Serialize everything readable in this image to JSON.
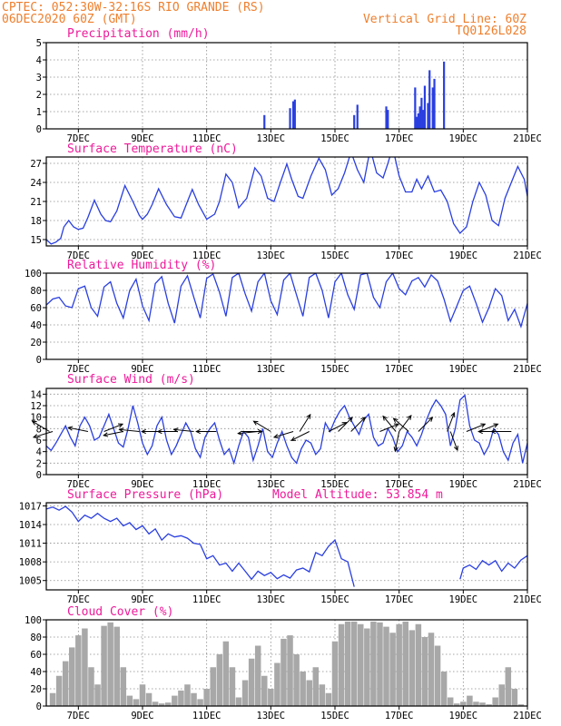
{
  "header": {
    "line1": "CPTEC:  052:30W-32:16S  RIO GRANDE (RS)",
    "line2": "06DEC2020 60Z (GMT)",
    "right1": "Vertical Grid Line: 60Z",
    "right2": "TQ0126L028"
  },
  "colors": {
    "header": "#ee7f2d",
    "title": "#ee1a9a",
    "series": "#2a3fe0",
    "cloud": "#a8a8a8",
    "grid": "#8a8a8a"
  },
  "x_axis": {
    "ticks": [
      "7DEC",
      "9DEC",
      "11DEC",
      "13DEC",
      "15DEC",
      "17DEC",
      "19DEC",
      "21DEC"
    ],
    "tick_days": [
      7,
      9,
      11,
      13,
      15,
      17,
      19,
      21
    ],
    "start_day": 6,
    "end_day": 21
  },
  "chart_data": [
    {
      "id": "precip",
      "type": "bar",
      "title": "Precipitation (mm/h)",
      "ylim": [
        0,
        5
      ],
      "yticks": [
        0,
        1,
        2,
        3,
        4,
        5
      ],
      "x": [
        12.8,
        13.6,
        13.7,
        13.75,
        15.6,
        15.7,
        16.6,
        16.65,
        17.5,
        17.55,
        17.6,
        17.65,
        17.7,
        17.75,
        17.8,
        17.9,
        17.95,
        18.05,
        18.1,
        18.4
      ],
      "values": [
        0.8,
        1.2,
        1.6,
        1.7,
        0.8,
        1.4,
        1.3,
        1.1,
        2.4,
        0.7,
        0.9,
        1.3,
        1.8,
        1.1,
        2.5,
        1.5,
        3.4,
        2.4,
        2.9,
        3.9
      ]
    },
    {
      "id": "temp",
      "type": "line",
      "title": "Surface Temperature (nC)",
      "ylim": [
        14,
        28
      ],
      "yticks": [
        15,
        18,
        21,
        24,
        27
      ],
      "x": [
        6.0,
        6.15,
        6.3,
        6.45,
        6.55,
        6.7,
        6.85,
        7.0,
        7.15,
        7.3,
        7.5,
        7.7,
        7.85,
        8.0,
        8.2,
        8.45,
        8.7,
        8.9,
        9.0,
        9.15,
        9.3,
        9.5,
        9.75,
        10.0,
        10.2,
        10.4,
        10.55,
        10.75,
        11.0,
        11.25,
        11.4,
        11.6,
        11.8,
        12.0,
        12.25,
        12.5,
        12.7,
        12.9,
        13.1,
        13.3,
        13.5,
        13.65,
        13.85,
        14.0,
        14.25,
        14.5,
        14.7,
        14.9,
        15.1,
        15.3,
        15.5,
        15.7,
        15.9,
        16.1,
        16.3,
        16.5,
        16.65,
        16.8,
        17.0,
        17.2,
        17.4,
        17.55,
        17.7,
        17.9,
        18.1,
        18.3,
        18.5,
        18.7,
        18.9,
        19.1,
        19.3,
        19.5,
        19.7,
        19.9,
        20.1,
        20.3,
        20.5,
        20.7,
        20.9,
        21.0
      ],
      "values": [
        15.0,
        14.3,
        14.6,
        15.2,
        17.0,
        18.0,
        17.0,
        16.6,
        16.8,
        18.5,
        21.2,
        19.0,
        18.0,
        17.8,
        19.5,
        23.5,
        21.0,
        18.8,
        18.2,
        19.0,
        20.5,
        23.0,
        20.5,
        18.6,
        18.4,
        21.0,
        22.9,
        20.5,
        18.2,
        19.0,
        21.0,
        25.3,
        24.0,
        20.0,
        21.5,
        26.3,
        25.0,
        21.5,
        21.0,
        24.0,
        26.9,
        24.5,
        21.8,
        21.5,
        25.0,
        27.8,
        26.0,
        22.0,
        23.0,
        25.5,
        28.8,
        26.0,
        24.0,
        29.3,
        25.5,
        24.7,
        27.0,
        29.5,
        25.0,
        22.5,
        22.5,
        24.5,
        23.0,
        25.0,
        22.5,
        22.8,
        21.0,
        17.5,
        16.0,
        17.0,
        21.0,
        24.0,
        22.0,
        18.0,
        17.2,
        21.5,
        24.0,
        26.5,
        24.5,
        21.8
      ]
    },
    {
      "id": "rh",
      "type": "line",
      "title": "Relative Humidity (%)",
      "ylim": [
        0,
        100
      ],
      "yticks": [
        0,
        20,
        40,
        60,
        80,
        100
      ],
      "x": [
        6.0,
        6.2,
        6.4,
        6.6,
        6.8,
        7.0,
        7.2,
        7.4,
        7.6,
        7.8,
        8.0,
        8.2,
        8.4,
        8.6,
        8.8,
        9.0,
        9.2,
        9.4,
        9.6,
        9.8,
        10.0,
        10.2,
        10.4,
        10.6,
        10.8,
        11.0,
        11.2,
        11.4,
        11.6,
        11.8,
        12.0,
        12.2,
        12.4,
        12.6,
        12.8,
        13.0,
        13.2,
        13.4,
        13.6,
        13.8,
        14.0,
        14.2,
        14.4,
        14.6,
        14.8,
        15.0,
        15.2,
        15.4,
        15.6,
        15.8,
        16.0,
        16.2,
        16.4,
        16.6,
        16.8,
        17.0,
        17.2,
        17.4,
        17.6,
        17.8,
        18.0,
        18.2,
        18.4,
        18.6,
        18.8,
        19.0,
        19.2,
        19.4,
        19.6,
        19.8,
        20.0,
        20.2,
        20.4,
        20.6,
        20.8,
        21.0
      ],
      "values": [
        63,
        70,
        72,
        62,
        60,
        82,
        85,
        60,
        50,
        84,
        90,
        65,
        48,
        80,
        93,
        62,
        45,
        88,
        96,
        65,
        42,
        85,
        97,
        72,
        48,
        94,
        99,
        78,
        50,
        95,
        100,
        76,
        56,
        90,
        100,
        68,
        52,
        92,
        100,
        75,
        50,
        95,
        100,
        80,
        48,
        90,
        100,
        75,
        58,
        98,
        100,
        72,
        60,
        90,
        100,
        82,
        75,
        91,
        95,
        84,
        98,
        91,
        70,
        44,
        62,
        80,
        85,
        65,
        43,
        60,
        82,
        74,
        45,
        58,
        38,
        65
      ]
    },
    {
      "id": "wind",
      "type": "line",
      "title": "Surface Wind (m/s)",
      "ylim": [
        0,
        15
      ],
      "yticks": [
        0,
        2,
        4,
        6,
        8,
        10,
        12,
        14
      ],
      "x": [
        6.0,
        6.15,
        6.3,
        6.45,
        6.6,
        6.75,
        6.9,
        7.05,
        7.2,
        7.35,
        7.5,
        7.65,
        7.8,
        7.95,
        8.1,
        8.25,
        8.4,
        8.55,
        8.7,
        8.85,
        9.0,
        9.15,
        9.3,
        9.45,
        9.6,
        9.75,
        9.9,
        10.05,
        10.2,
        10.35,
        10.5,
        10.65,
        10.8,
        10.95,
        11.1,
        11.25,
        11.4,
        11.55,
        11.7,
        11.85,
        12.0,
        12.15,
        12.3,
        12.45,
        12.6,
        12.75,
        12.9,
        13.05,
        13.2,
        13.35,
        13.5,
        13.65,
        13.8,
        13.95,
        14.1,
        14.25,
        14.4,
        14.55,
        14.7,
        14.85,
        15.0,
        15.15,
        15.3,
        15.45,
        15.6,
        15.75,
        15.9,
        16.05,
        16.2,
        16.35,
        16.5,
        16.65,
        16.8,
        16.95,
        17.1,
        17.25,
        17.4,
        17.55,
        17.7,
        17.85,
        18.0,
        18.15,
        18.3,
        18.45,
        18.6,
        18.75,
        18.9,
        19.05,
        19.2,
        19.35,
        19.5,
        19.65,
        19.8,
        19.95,
        20.1,
        20.25,
        20.4,
        20.55,
        20.7,
        20.85,
        21.0
      ],
      "values": [
        5.0,
        4.2,
        5.5,
        7.0,
        8.5,
        6.5,
        5.0,
        8.5,
        10.0,
        8.5,
        6.0,
        6.5,
        8.5,
        10.5,
        8.0,
        5.5,
        4.8,
        8.0,
        12.0,
        9.0,
        5.5,
        3.5,
        5.0,
        8.5,
        10.0,
        6.0,
        3.5,
        5.0,
        7.0,
        9.0,
        7.5,
        4.5,
        3.0,
        6.5,
        8.0,
        9.0,
        6.0,
        3.5,
        4.5,
        2.0,
        5.0,
        7.5,
        6.5,
        2.5,
        5.0,
        8.0,
        4.0,
        3.0,
        5.5,
        7.5,
        5.0,
        3.0,
        2.0,
        4.5,
        6.0,
        5.5,
        3.5,
        4.5,
        9.0,
        7.5,
        9.5,
        11.0,
        12.0,
        10.0,
        8.5,
        7.0,
        9.5,
        10.5,
        6.5,
        5.0,
        5.5,
        8.0,
        6.5,
        4.0,
        5.0,
        7.5,
        6.5,
        5.0,
        7.0,
        9.5,
        11.5,
        13.0,
        12.0,
        10.5,
        5.0,
        8.0,
        13.0,
        13.8,
        8.5,
        6.0,
        5.5,
        3.5,
        5.0,
        8.0,
        7.0,
        4.0,
        2.5,
        5.5,
        7.0,
        2.0,
        5.5
      ],
      "arrows": [
        {
          "x": 6.1,
          "u": -1,
          "v": 0.6
        },
        {
          "x": 6.2,
          "u": -1,
          "v": -0.3
        },
        {
          "x": 7.3,
          "u": -1,
          "v": 0.2
        },
        {
          "x": 7.8,
          "u": 1,
          "v": 0.4
        },
        {
          "x": 8.4,
          "u": -1,
          "v": -0.2
        },
        {
          "x": 8.9,
          "u": -1,
          "v": 0.1
        },
        {
          "x": 9.6,
          "u": -1,
          "v": 0
        },
        {
          "x": 10.1,
          "u": -1,
          "v": 0
        },
        {
          "x": 10.6,
          "u": -1,
          "v": 0.1
        },
        {
          "x": 11.3,
          "u": -1,
          "v": 0
        },
        {
          "x": 12.1,
          "u": 1,
          "v": 0
        },
        {
          "x": 12.6,
          "u": -1,
          "v": -0.1
        },
        {
          "x": 13.0,
          "u": -1,
          "v": 0.6
        },
        {
          "x": 13.7,
          "u": -1,
          "v": -0.3
        },
        {
          "x": 13.9,
          "u": 0.5,
          "v": 0.8
        },
        {
          "x": 14.2,
          "u": -0.4,
          "v": -0.2
        },
        {
          "x": 14.8,
          "u": 1,
          "v": 0.5
        },
        {
          "x": 15.1,
          "u": 0.5,
          "v": 0.5
        },
        {
          "x": 15.5,
          "u": 0.6,
          "v": 0.6
        },
        {
          "x": 16.4,
          "u": 1,
          "v": 0.4
        },
        {
          "x": 16.9,
          "u": -0.5,
          "v": 0.6
        },
        {
          "x": 17.0,
          "u": -0.2,
          "v": -1
        },
        {
          "x": 17.0,
          "u": 0.3,
          "v": 0.4
        },
        {
          "x": 17.3,
          "u": -0.7,
          "v": 0.6
        },
        {
          "x": 17.6,
          "u": 0.8,
          "v": 0.8
        },
        {
          "x": 18.5,
          "u": 0.3,
          "v": 0.8
        },
        {
          "x": 18.6,
          "u": 0.3,
          "v": -0.8
        },
        {
          "x": 19.1,
          "u": 1,
          "v": 0.4
        },
        {
          "x": 19.5,
          "u": 1,
          "v": 0.4
        },
        {
          "x": 20.1,
          "u": -1,
          "v": 0
        },
        {
          "x": 20.5,
          "u": -1,
          "v": 0
        }
      ]
    },
    {
      "id": "press",
      "type": "line",
      "title": "Surface Pressure (hPa)",
      "annotation": "Model Altitude: 53.854 m",
      "ylim": [
        1003.5,
        1017.5
      ],
      "yticks": [
        1005,
        1008,
        1011,
        1014,
        1017
      ],
      "x": [
        6.0,
        6.2,
        6.4,
        6.6,
        6.8,
        7.0,
        7.2,
        7.4,
        7.6,
        7.8,
        8.0,
        8.2,
        8.4,
        8.6,
        8.8,
        9.0,
        9.2,
        9.4,
        9.6,
        9.8,
        10.0,
        10.2,
        10.4,
        10.6,
        10.8,
        11.0,
        11.2,
        11.4,
        11.6,
        11.8,
        12.0,
        12.2,
        12.4,
        12.6,
        12.8,
        13.0,
        13.2,
        13.4,
        13.6,
        13.8,
        14.0,
        14.2,
        14.4,
        14.6,
        14.8,
        15.0,
        15.2,
        15.4,
        15.6,
        18.9,
        19.0,
        19.2,
        19.4,
        19.6,
        19.8,
        20.0,
        20.2,
        20.4,
        20.6,
        20.8,
        21.0
      ],
      "values": [
        1016.5,
        1016.8,
        1016.3,
        1016.9,
        1016.0,
        1014.5,
        1015.5,
        1015.0,
        1015.8,
        1015.0,
        1014.5,
        1015.0,
        1013.8,
        1014.3,
        1013.2,
        1013.8,
        1012.5,
        1013.3,
        1011.5,
        1012.5,
        1012.0,
        1012.2,
        1011.8,
        1011.0,
        1010.8,
        1008.5,
        1009.0,
        1007.5,
        1007.8,
        1006.5,
        1007.8,
        1006.5,
        1005.2,
        1006.5,
        1005.8,
        1006.3,
        1005.3,
        1005.9,
        1005.4,
        1006.7,
        1007.0,
        1006.4,
        1009.5,
        1009.0,
        1010.5,
        1011.5,
        1008.5,
        1008.0,
        1004.0,
        1005.2,
        1007.0,
        1007.5,
        1006.8,
        1008.2,
        1007.5,
        1008.2,
        1006.5,
        1007.8,
        1007.0,
        1008.3,
        1009.0
      ]
    },
    {
      "id": "cloud",
      "type": "bar",
      "title": "Cloud Cover (%)",
      "ylim": [
        0,
        100
      ],
      "yticks": [
        0,
        20,
        40,
        60,
        80,
        100
      ],
      "x": [
        6.2,
        6.4,
        6.6,
        6.8,
        7.0,
        7.2,
        7.4,
        7.6,
        7.8,
        8.0,
        8.2,
        8.4,
        8.6,
        8.8,
        9.0,
        9.2,
        9.4,
        9.6,
        9.8,
        10.0,
        10.2,
        10.4,
        10.6,
        10.8,
        11.0,
        11.2,
        11.4,
        11.6,
        11.8,
        12.0,
        12.2,
        12.4,
        12.6,
        12.8,
        13.0,
        13.2,
        13.4,
        13.6,
        13.8,
        14.0,
        14.2,
        14.4,
        14.6,
        14.8,
        15.0,
        15.2,
        15.4,
        15.6,
        15.8,
        16.0,
        16.2,
        16.4,
        16.6,
        16.8,
        17.0,
        17.2,
        17.4,
        17.6,
        17.8,
        18.0,
        18.2,
        18.4,
        18.6,
        18.8,
        19.0,
        19.2,
        19.4,
        19.6,
        19.8,
        20.0,
        20.2,
        20.4,
        20.6,
        20.8
      ],
      "values": [
        15,
        35,
        52,
        68,
        82,
        90,
        45,
        25,
        93,
        97,
        92,
        45,
        12,
        8,
        25,
        15,
        5,
        3,
        4,
        12,
        18,
        25,
        15,
        8,
        20,
        45,
        60,
        75,
        45,
        10,
        30,
        55,
        70,
        35,
        20,
        50,
        78,
        82,
        60,
        40,
        30,
        45,
        25,
        15,
        75,
        95,
        98,
        98,
        95,
        90,
        98,
        97,
        92,
        85,
        95,
        98,
        88,
        95,
        80,
        85,
        70,
        40,
        10,
        3,
        5,
        12,
        5,
        4,
        2,
        10,
        25,
        45,
        20,
        2
      ]
    }
  ]
}
